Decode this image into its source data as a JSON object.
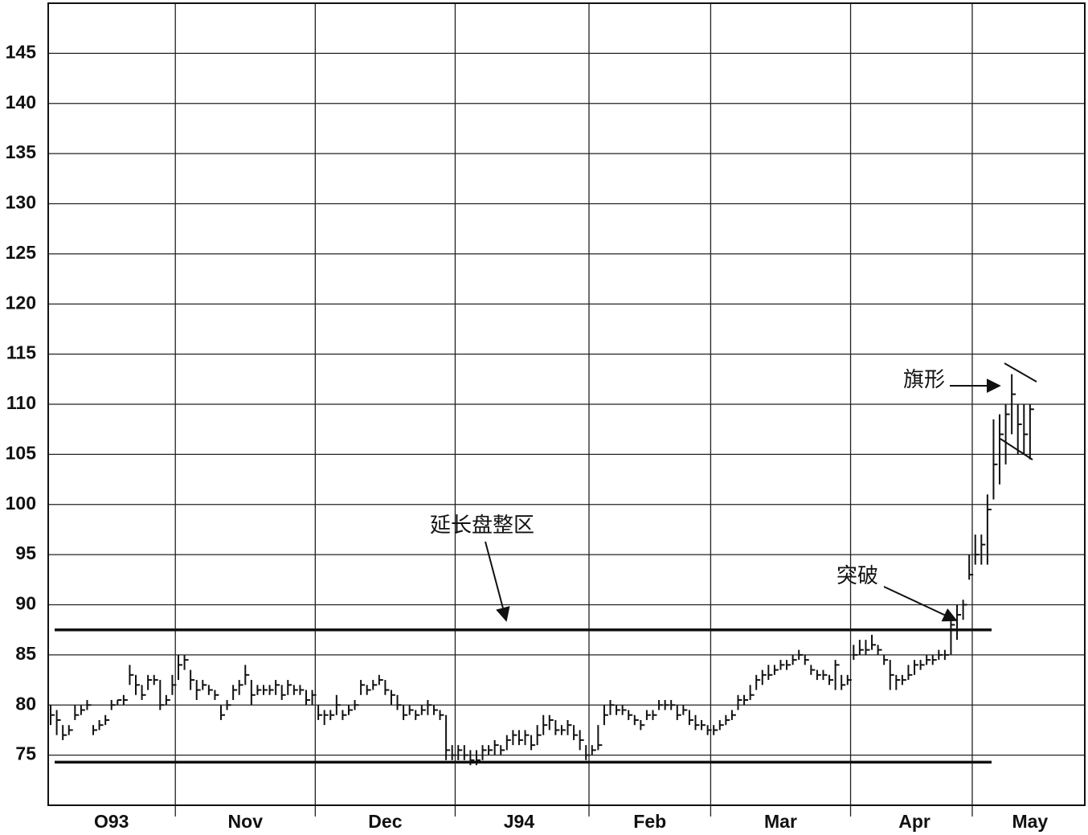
{
  "chart_data": {
    "type": "ohlc",
    "xlim": [
      -0.4,
      170
    ],
    "xgrid": [
      20.5,
      43.5,
      66.5,
      88.5,
      108.5,
      131.5,
      151.5
    ],
    "xticks": [
      {
        "value": 10,
        "label": "O93"
      },
      {
        "value": 32,
        "label": "Nov"
      },
      {
        "value": 55,
        "label": "Dec"
      },
      {
        "value": 77,
        "label": "J94"
      },
      {
        "value": 98.5,
        "label": "Feb"
      },
      {
        "value": 120,
        "label": "Mar"
      },
      {
        "value": 142,
        "label": "Apr"
      },
      {
        "value": 161,
        "label": "May"
      }
    ],
    "ylim": [
      70,
      150
    ],
    "yticks": [
      75,
      80,
      85,
      90,
      95,
      100,
      105,
      110,
      115,
      120,
      125,
      130,
      135,
      140,
      145
    ],
    "grid": true,
    "color": "#111111",
    "high": [
      80,
      79.5,
      78,
      78,
      80,
      80,
      80.5,
      78,
      78.5,
      79,
      80.5,
      80.5,
      81,
      84,
      83,
      82,
      83,
      83,
      82.5,
      81,
      83,
      85,
      85,
      83.5,
      82.5,
      82.5,
      82,
      81.5,
      80,
      80.5,
      82,
      82.5,
      84,
      82.5,
      82,
      82,
      82,
      82.5,
      82,
      82.5,
      82,
      82,
      81.5,
      81.5,
      80,
      79.5,
      79.5,
      81,
      79.5,
      80,
      80.5,
      82.5,
      82,
      82.5,
      83,
      82.5,
      81.5,
      81,
      80,
      80,
      79.5,
      80,
      80.5,
      80,
      79.5,
      79,
      76,
      76,
      76,
      75.5,
      75.5,
      76,
      76,
      76.5,
      76,
      77,
      77.5,
      77.5,
      77.5,
      77,
      78,
      79,
      79,
      78.5,
      78,
      78.5,
      78,
      77.5,
      76,
      76,
      78,
      80,
      80.5,
      80,
      80,
      79.5,
      79,
      78.5,
      79.5,
      79.5,
      80.5,
      80.5,
      80.5,
      80,
      80,
      79.5,
      79,
      78.5,
      78,
      78,
      78.5,
      79,
      79.5,
      81,
      81,
      82,
      83,
      83.5,
      84,
      84,
      84.5,
      84.5,
      85,
      85.5,
      85,
      84,
      83.5,
      83.5,
      83,
      84.5,
      83,
      83,
      86,
      86.5,
      86.5,
      87,
      86,
      85,
      84.5,
      83,
      83,
      84,
      84.5,
      84.5,
      85,
      85,
      85.5,
      85.5,
      88.5,
      90,
      90.5,
      95,
      97,
      97,
      101,
      108.5,
      109,
      110,
      113,
      110,
      110,
      110
    ],
    "low": [
      78,
      77,
      76.5,
      77,
      78.5,
      79,
      79.5,
      77,
      77.5,
      78,
      79.5,
      80,
      80,
      82,
      81,
      80.5,
      81.5,
      82,
      79.5,
      80,
      81,
      82.5,
      83.5,
      81.5,
      80.5,
      81.5,
      81,
      80.5,
      78.5,
      79.5,
      80.5,
      81,
      82,
      80,
      81,
      81,
      81,
      81,
      80.5,
      81,
      81,
      81,
      80,
      80,
      78.5,
      78,
      78.5,
      79,
      78.5,
      79,
      79.5,
      81,
      81,
      81.5,
      82,
      81,
      80,
      79.5,
      78.5,
      79,
      78.5,
      79,
      79,
      79,
      78.5,
      74.5,
      74.5,
      74.5,
      74.5,
      74,
      74,
      74.5,
      75,
      75,
      75,
      75.5,
      76,
      76,
      76,
      75.5,
      76,
      77,
      77.5,
      77,
      77,
      77,
      76.5,
      75.5,
      74.5,
      75,
      75.5,
      78,
      79,
      79,
      79,
      78.5,
      78,
      77.5,
      78.5,
      78.5,
      79.5,
      79.5,
      79.5,
      78.5,
      79,
      78,
      77.5,
      77.5,
      77,
      77,
      77.5,
      78,
      78.5,
      79.5,
      80,
      80.5,
      81.5,
      82,
      82.5,
      83,
      83.5,
      83.5,
      84,
      84.5,
      84,
      83,
      82.5,
      82.5,
      82,
      81.5,
      81.5,
      82,
      84.5,
      85,
      85,
      85.5,
      85,
      84,
      81.5,
      81.5,
      82,
      82.5,
      83,
      83.5,
      84,
      84,
      84.5,
      84.5,
      85,
      86.5,
      88.5,
      92.5,
      94,
      94,
      94,
      100.5,
      102,
      104,
      107,
      105,
      105,
      104.5
    ],
    "close": [
      79,
      78.5,
      77,
      77.5,
      79,
      79.5,
      80,
      77.5,
      78,
      78.5,
      80,
      80.5,
      80.5,
      83,
      82,
      81,
      82.5,
      82.5,
      80,
      80.5,
      82,
      84,
      84.5,
      82.5,
      81.5,
      82,
      81.5,
      81,
      79,
      80,
      81.5,
      82,
      83,
      81,
      81.5,
      81.5,
      81.5,
      82,
      81,
      82,
      81.5,
      81.5,
      80.5,
      81,
      79,
      79,
      79,
      80,
      79,
      79.5,
      80,
      82,
      81.5,
      82,
      82.5,
      81.5,
      81,
      80,
      79,
      79.5,
      79,
      79.5,
      80,
      79.5,
      79,
      75.5,
      75,
      75.5,
      75,
      74.5,
      74.5,
      75.5,
      75.5,
      76,
      75.5,
      76.5,
      77,
      76.5,
      77,
      76,
      77,
      78,
      78.5,
      77.5,
      77.5,
      78,
      77,
      76.5,
      75,
      75.5,
      76,
      79,
      80,
      79.5,
      79.5,
      79,
      78.5,
      78,
      79,
      79,
      80,
      80,
      80,
      79,
      79.5,
      78.5,
      78,
      78,
      77.5,
      77.5,
      78,
      78.5,
      79,
      80.5,
      80.5,
      81,
      82.5,
      83,
      83,
      83.5,
      84,
      84,
      84.5,
      85,
      84.5,
      83.5,
      83,
      83,
      82.5,
      84,
      82,
      82.5,
      85,
      85.5,
      85.5,
      86,
      85.5,
      84.5,
      83,
      82.5,
      82.5,
      83,
      84,
      84,
      84.5,
      84.5,
      85,
      85,
      88,
      89,
      90,
      93,
      95,
      96,
      99.5,
      104,
      107,
      109,
      111,
      108,
      107,
      109.5
    ],
    "levels": [
      87.5,
      74.3
    ],
    "annotations": [
      {
        "text": "延长盘整区"
      },
      {
        "text": "突破"
      },
      {
        "text": "旗形"
      }
    ]
  }
}
